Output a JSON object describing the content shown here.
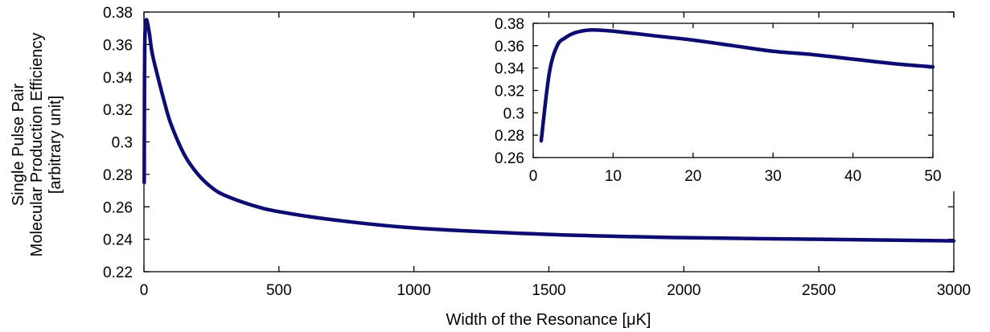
{
  "chart_data": [
    {
      "id": "main",
      "type": "line",
      "xlabel": "Width of the Resonance [μK]",
      "ylabel_lines": [
        "Single Pulse Pair",
        "Molecular Production Efficiency",
        "[arbitrary unit]"
      ],
      "xlim": [
        0,
        3000
      ],
      "ylim": [
        0.22,
        0.38
      ],
      "xticks": [
        0,
        500,
        1000,
        1500,
        2000,
        2500,
        3000
      ],
      "yticks": [
        0.22,
        0.24,
        0.26,
        0.28,
        0.3,
        0.32,
        0.34,
        0.36,
        0.38
      ],
      "xtick_labels": [
        "0",
        "500",
        "1000",
        "1500",
        "2000",
        "2500",
        "3000"
      ],
      "ytick_labels": [
        "0.22",
        "0.24",
        "0.26",
        "0.28",
        "0.3",
        "0.32",
        "0.34",
        "0.36",
        "0.38"
      ],
      "color": "#0c0c72",
      "x": [
        1,
        2,
        3,
        5,
        8,
        12,
        20,
        30,
        50,
        75,
        100,
        150,
        200,
        250,
        300,
        400,
        500,
        700,
        1000,
        1500,
        2000,
        2500,
        3000
      ],
      "y": [
        0.275,
        0.335,
        0.36,
        0.37,
        0.375,
        0.374,
        0.367,
        0.355,
        0.341,
        0.325,
        0.311,
        0.292,
        0.28,
        0.272,
        0.267,
        0.261,
        0.257,
        0.252,
        0.247,
        0.243,
        0.241,
        0.24,
        0.239
      ]
    },
    {
      "id": "inset",
      "type": "line",
      "xlim": [
        0,
        50
      ],
      "ylim": [
        0.26,
        0.38
      ],
      "xticks": [
        0,
        10,
        20,
        30,
        40,
        50
      ],
      "yticks": [
        0.26,
        0.28,
        0.3,
        0.32,
        0.34,
        0.36,
        0.38
      ],
      "xtick_labels": [
        "0",
        "10",
        "20",
        "30",
        "40",
        "50"
      ],
      "ytick_labels": [
        "0.26",
        "0.28",
        "0.3",
        "0.32",
        "0.34",
        "0.36",
        "0.38"
      ],
      "color": "#0c0c72",
      "x": [
        1,
        2,
        3,
        4,
        5,
        6,
        7,
        8,
        10,
        15,
        20,
        25,
        30,
        35,
        40,
        45,
        50
      ],
      "y": [
        0.275,
        0.335,
        0.36,
        0.367,
        0.371,
        0.373,
        0.374,
        0.374,
        0.373,
        0.369,
        0.365,
        0.36,
        0.355,
        0.352,
        0.348,
        0.344,
        0.341
      ]
    }
  ]
}
